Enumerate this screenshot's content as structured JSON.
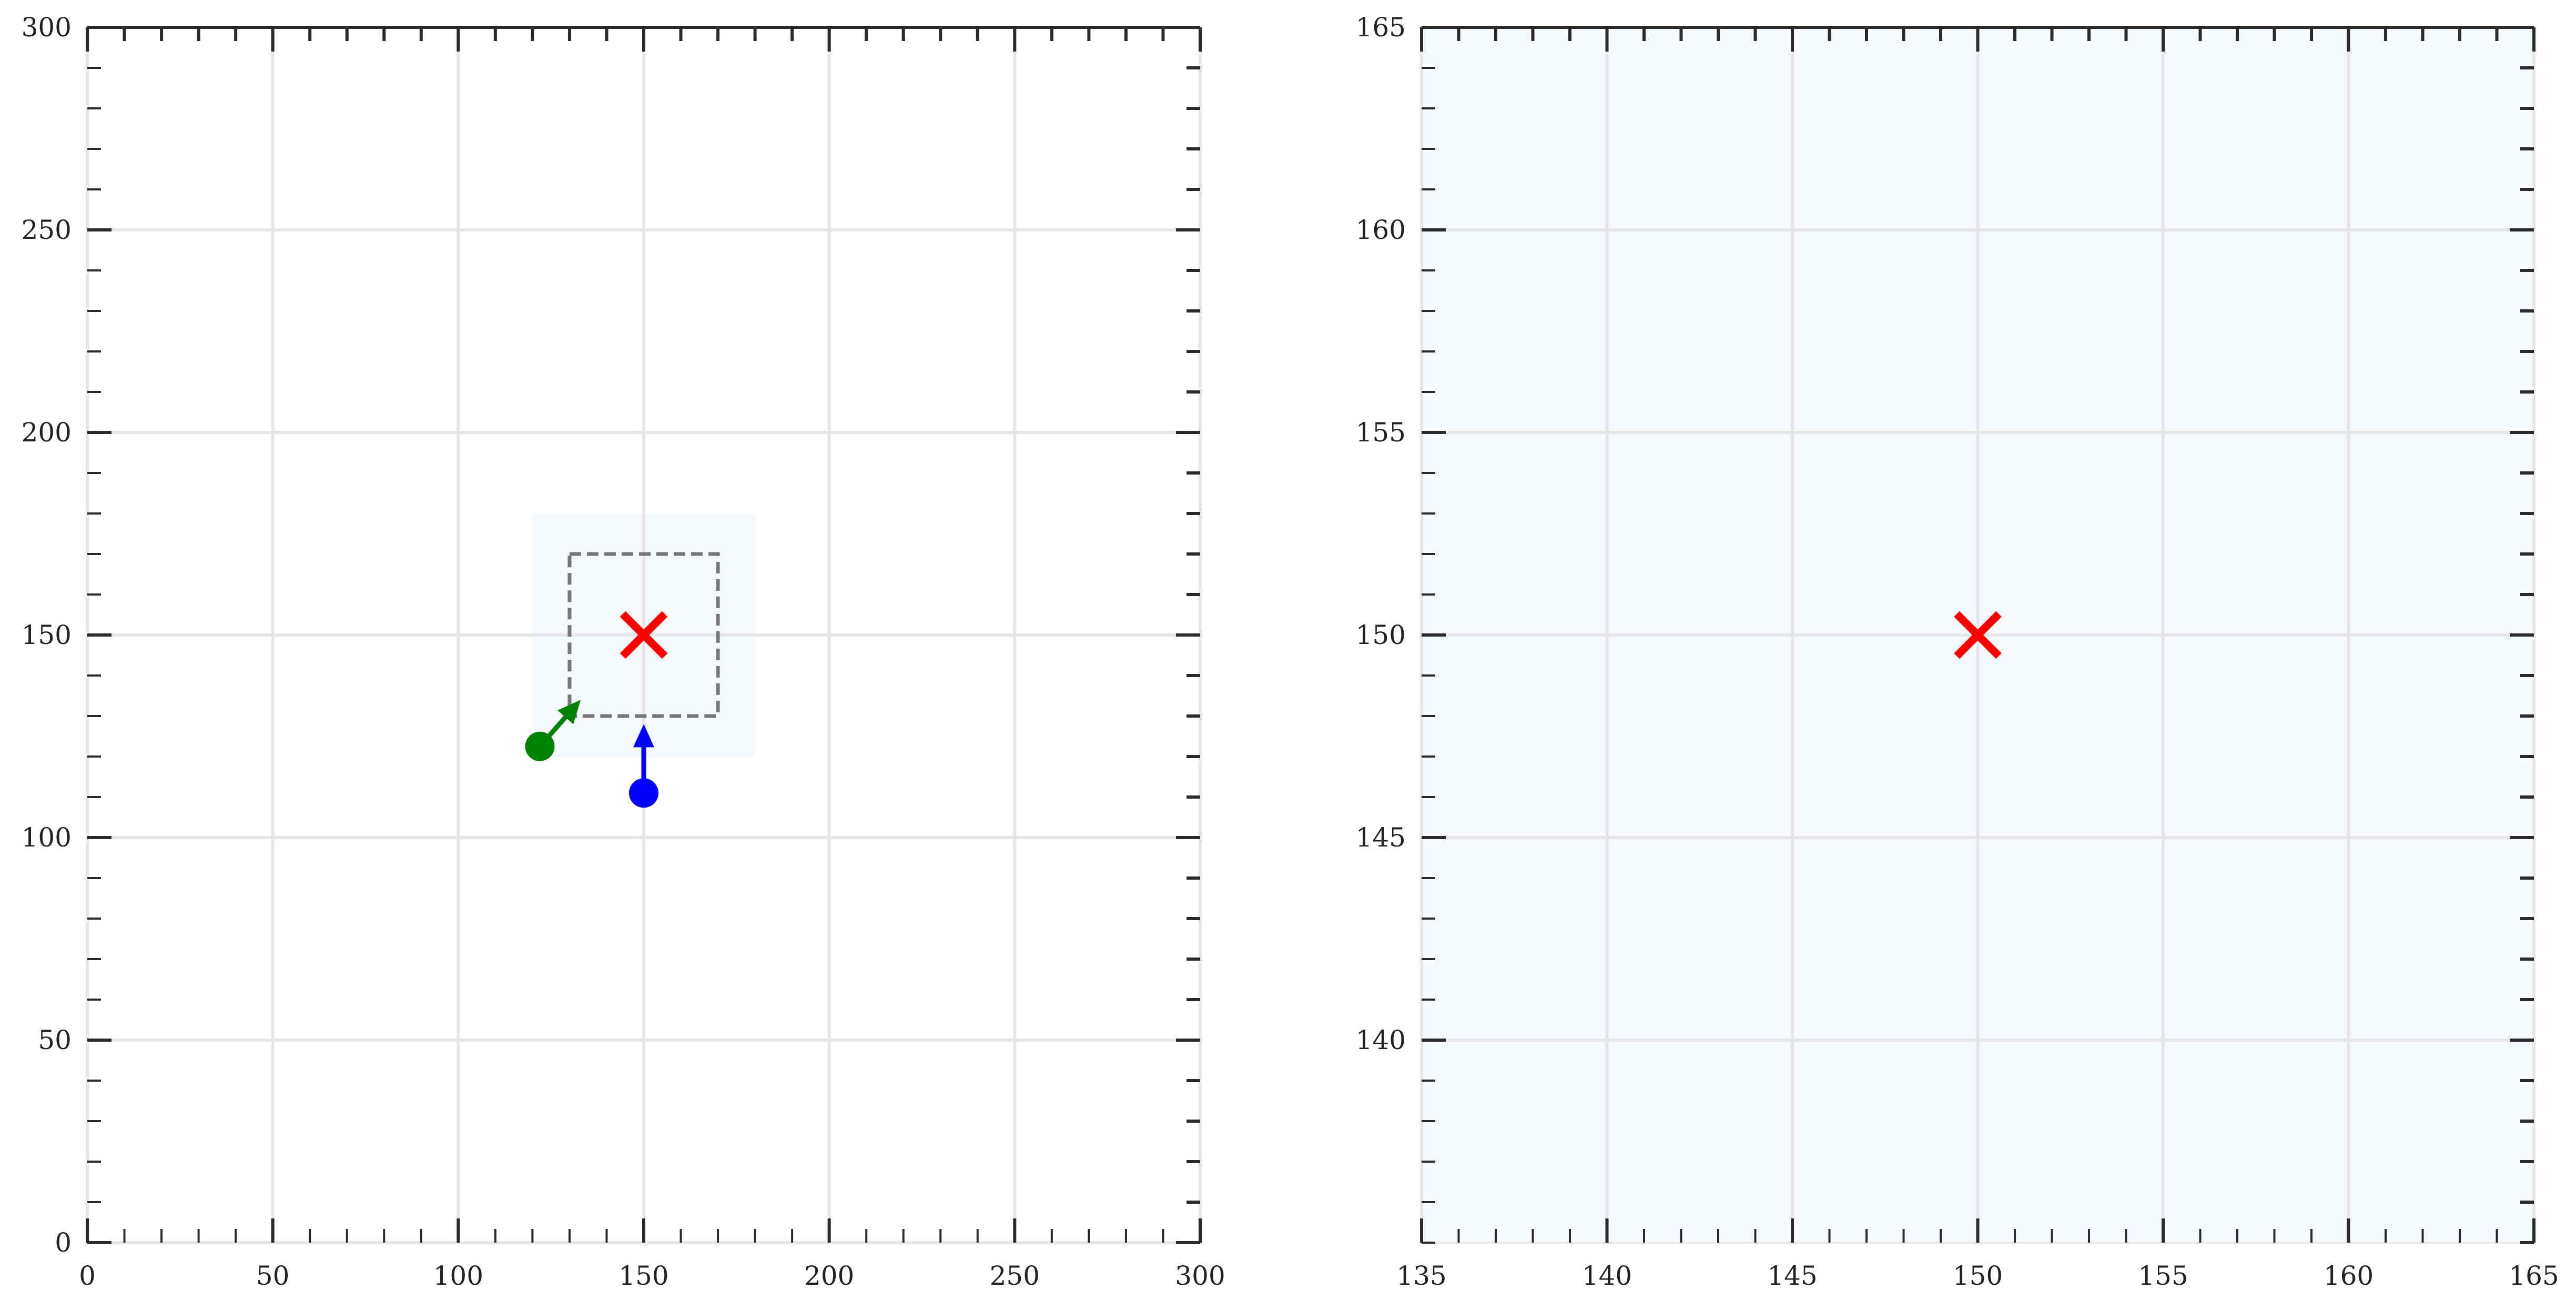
{
  "chart_data": [
    {
      "type": "scatter",
      "title": "",
      "xlabel": "",
      "ylabel": "",
      "xlim": [
        0,
        300
      ],
      "ylim": [
        0,
        300
      ],
      "xticks": [
        0,
        50,
        100,
        150,
        200,
        250,
        300
      ],
      "yticks": [
        0,
        50,
        100,
        150,
        200,
        250,
        300
      ],
      "xtick_labels": [
        "0",
        "50",
        "100",
        "150",
        "200",
        "250",
        "300"
      ],
      "ytick_labels": [
        "0",
        "50",
        "100",
        "150",
        "200",
        "250",
        "300"
      ],
      "minor_tick_step": 10,
      "grid": true,
      "shaded_region": {
        "x": [
          120,
          180
        ],
        "y": [
          120,
          180
        ],
        "color": "#f5f9fd"
      },
      "dashed_box": {
        "x": [
          130,
          170
        ],
        "y": [
          130,
          170
        ],
        "color": "#777777"
      },
      "target": {
        "x": 150,
        "y": 150,
        "marker": "x",
        "color": "#ff0000"
      },
      "points": [
        {
          "x": 122,
          "y": 122.5,
          "color": "#008000",
          "arrow_to": {
            "x": 133,
            "y": 134
          }
        },
        {
          "x": 150,
          "y": 111,
          "color": "#0000ff",
          "arrow_to": {
            "x": 150,
            "y": 128
          }
        }
      ]
    },
    {
      "type": "scatter",
      "title": "",
      "xlabel": "",
      "ylabel": "",
      "xlim": [
        135,
        165
      ],
      "ylim": [
        135,
        165
      ],
      "xticks": [
        135,
        140,
        145,
        150,
        155,
        160,
        165
      ],
      "yticks": [
        140,
        145,
        150,
        155,
        160,
        165
      ],
      "xtick_labels": [
        "135",
        "140",
        "145",
        "150",
        "155",
        "160",
        "165"
      ],
      "ytick_labels": [
        "140",
        "145",
        "150",
        "155",
        "160",
        "165"
      ],
      "minor_tick_step": 1,
      "grid": true,
      "background": "#f5f9fd",
      "target": {
        "x": 150,
        "y": 150,
        "marker": "x",
        "color": "#ff0000"
      },
      "points": []
    }
  ]
}
